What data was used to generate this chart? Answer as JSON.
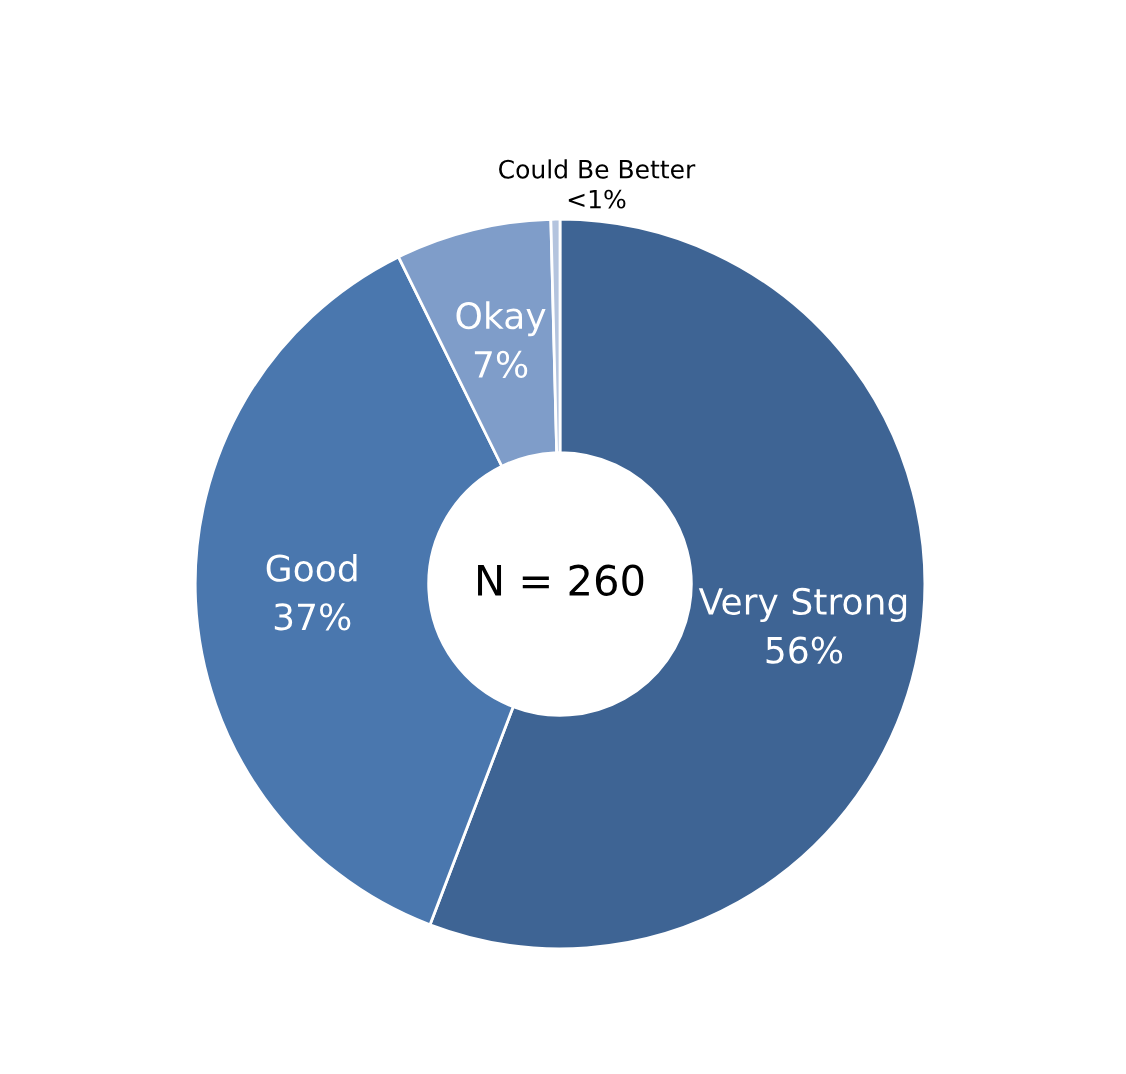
{
  "chart_data": {
    "type": "donut",
    "categories": [
      "Very Strong",
      "Good",
      "Okay",
      "Could Be Better"
    ],
    "values": [
      55.8,
      36.9,
      6.9,
      0.4
    ],
    "value_labels": [
      "56%",
      "37%",
      "7%",
      "<1%"
    ],
    "colors": [
      "#3e6494",
      "#4a77ae",
      "#7f9dc9",
      "#b4c4de"
    ],
    "annotations": [
      "N = 260"
    ],
    "legend": false
  }
}
